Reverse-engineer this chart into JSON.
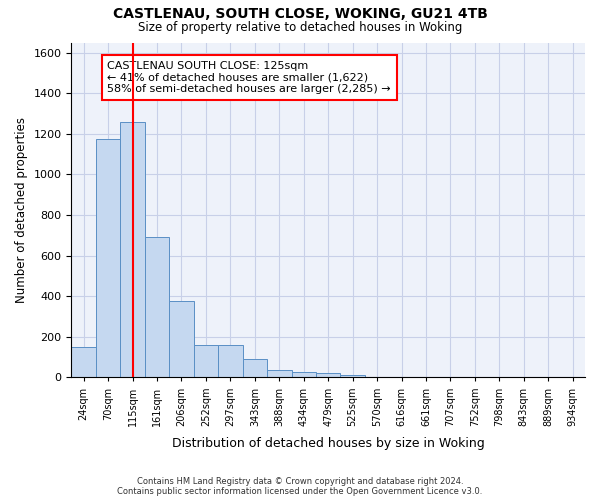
{
  "title_line1": "CASTLENAU, SOUTH CLOSE, WOKING, GU21 4TB",
  "title_line2": "Size of property relative to detached houses in Woking",
  "xlabel": "Distribution of detached houses by size in Woking",
  "ylabel": "Number of detached properties",
  "bin_labels": [
    "24sqm",
    "70sqm",
    "115sqm",
    "161sqm",
    "206sqm",
    "252sqm",
    "297sqm",
    "343sqm",
    "388sqm",
    "434sqm",
    "479sqm",
    "525sqm",
    "570sqm",
    "616sqm",
    "661sqm",
    "707sqm",
    "752sqm",
    "798sqm",
    "843sqm",
    "889sqm",
    "934sqm"
  ],
  "bar_values": [
    152,
    1175,
    1260,
    690,
    375,
    160,
    160,
    90,
    37,
    27,
    20,
    10,
    0,
    0,
    0,
    0,
    0,
    0,
    0,
    0,
    0
  ],
  "bar_color": "#c5d8f0",
  "bar_edgecolor": "#5a8fc5",
  "property_line_x": 2,
  "annotation_text": "CASTLENAU SOUTH CLOSE: 125sqm\n← 41% of detached houses are smaller (1,622)\n58% of semi-detached houses are larger (2,285) →",
  "annotation_box_color": "white",
  "annotation_box_edgecolor": "red",
  "vline_color": "red",
  "ylim": [
    0,
    1650
  ],
  "yticks": [
    0,
    200,
    400,
    600,
    800,
    1000,
    1200,
    1400,
    1600
  ],
  "footer_line1": "Contains HM Land Registry data © Crown copyright and database right 2024.",
  "footer_line2": "Contains public sector information licensed under the Open Government Licence v3.0.",
  "background_color": "#eef2fa",
  "grid_color": "#c8d0e8",
  "fig_bg": "white"
}
